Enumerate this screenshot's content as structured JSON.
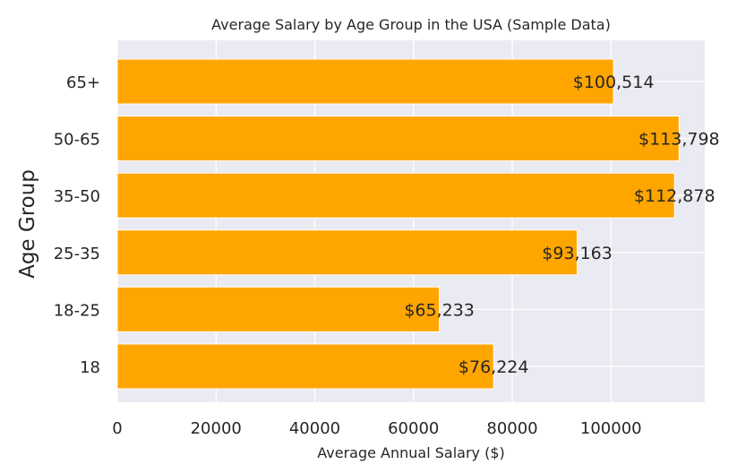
{
  "chart_data": {
    "type": "bar",
    "orientation": "horizontal",
    "title": "Average Salary by Age Group in the USA (Sample Data)",
    "xlabel": "Average Annual Salary ($)",
    "ylabel": "Age Group",
    "categories": [
      "18",
      "18-25",
      "25-35",
      "35-50",
      "50-65",
      "65+"
    ],
    "values": [
      76224,
      65233,
      93163,
      112878,
      113798,
      100514
    ],
    "data_labels": [
      "$76,224",
      "$65,233",
      "$93,163",
      "$112,878",
      "$113,798",
      "$100,514"
    ],
    "xlim": [
      0,
      119000
    ],
    "xticks": [
      0,
      20000,
      40000,
      60000,
      80000,
      100000
    ],
    "xtick_labels": [
      "0",
      "20000",
      "40000",
      "60000",
      "80000",
      "100000"
    ],
    "grid": true,
    "colors": {
      "bar": "#FFA500",
      "plot_background": "#EAEAF2",
      "grid": "#FFFFFF"
    }
  }
}
